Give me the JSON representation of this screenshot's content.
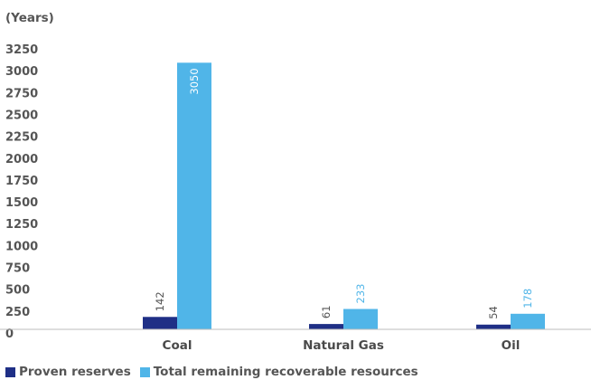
{
  "chart_data": {
    "type": "bar",
    "title": "",
    "ylabel": "(Years)",
    "xlabel": "",
    "categories": [
      "Coal",
      "Natural Gas",
      "Oil"
    ],
    "series": [
      {
        "name": "Proven reserves",
        "color": "#1f2f86",
        "values": [
          142,
          61,
          54
        ]
      },
      {
        "name": "Total remaining recoverable resources",
        "color": "#50b5e8",
        "values": [
          3050,
          233,
          178
        ]
      }
    ],
    "ylim": [
      0,
      3250
    ],
    "yticks": [
      0,
      250,
      500,
      750,
      1000,
      1250,
      1500,
      1750,
      2000,
      2250,
      2500,
      2750,
      3000,
      3250
    ],
    "grid": false,
    "legend_position": "bottom-left"
  }
}
